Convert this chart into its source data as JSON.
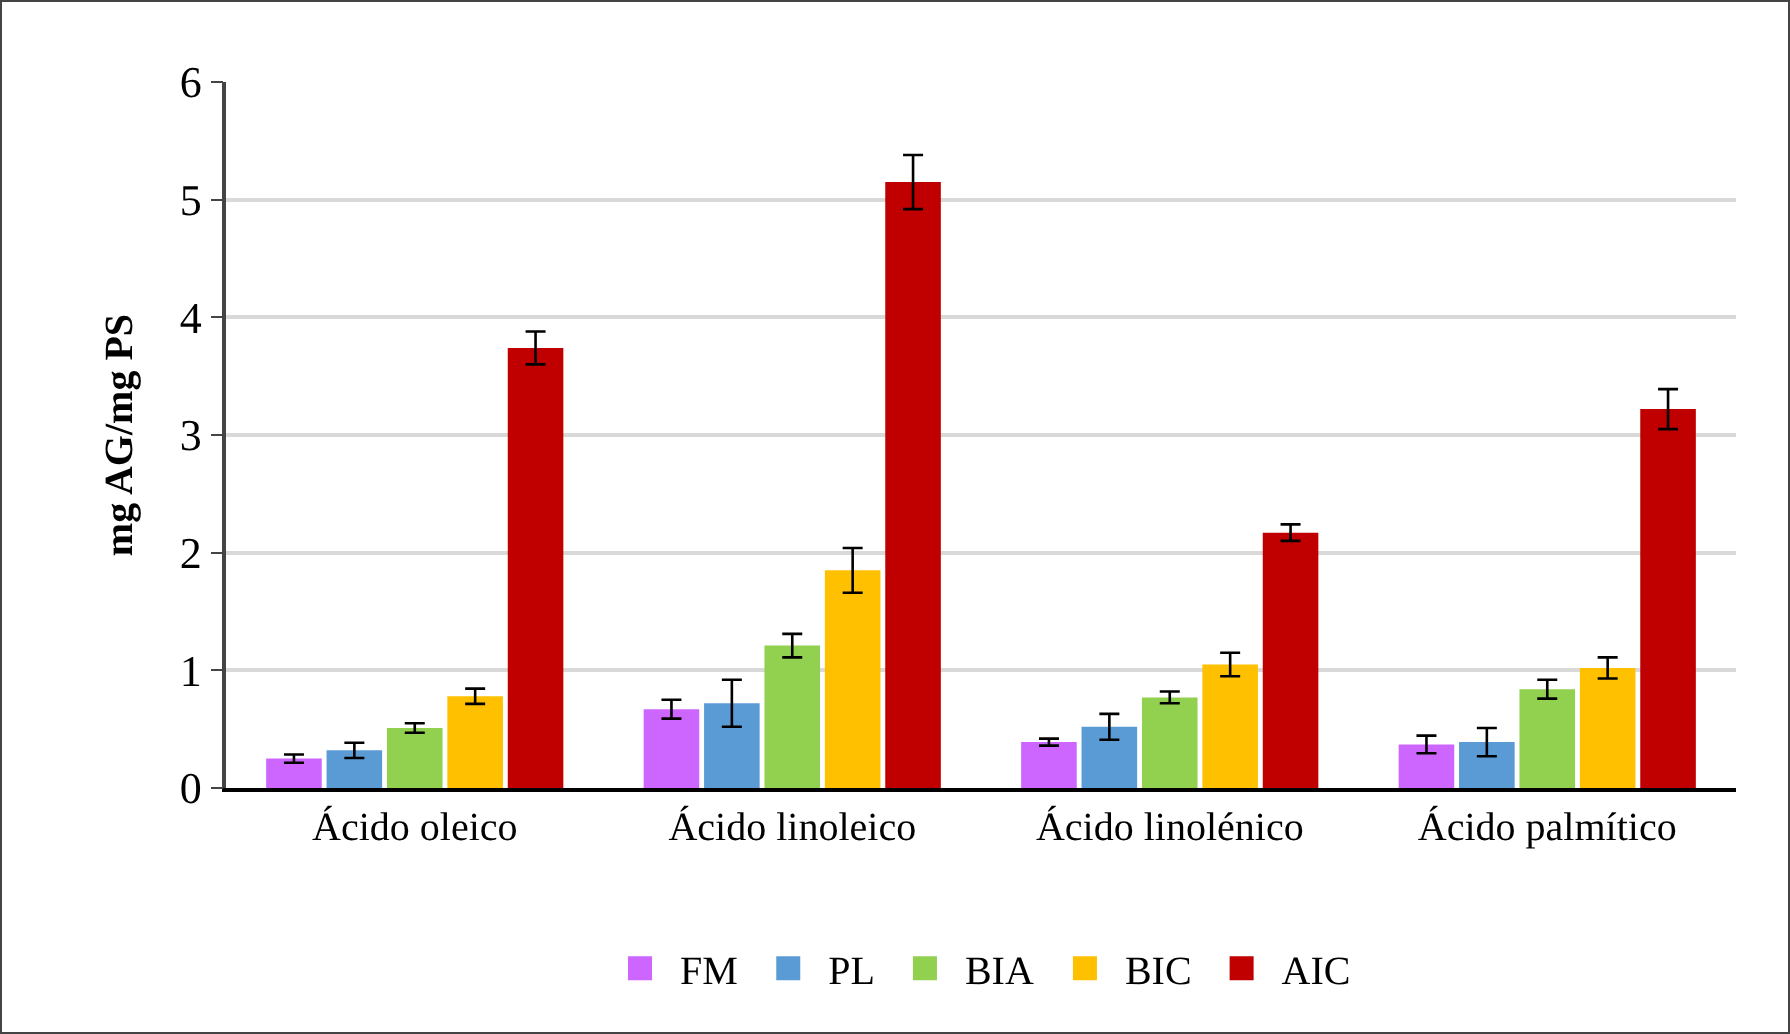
{
  "chart_data": {
    "type": "bar",
    "ylabel": "mg AG/mg PS",
    "categories": [
      "Ácido oleico",
      "Ácido linoleico",
      "Ácido linolénico",
      "Ácido palmítico"
    ],
    "series": [
      {
        "name": "FM",
        "color": "#cc66ff",
        "values": [
          0.25,
          0.67,
          0.39,
          0.37
        ],
        "errors": [
          0.035,
          0.08,
          0.03,
          0.075
        ]
      },
      {
        "name": "PL",
        "color": "#5b9bd5",
        "values": [
          0.32,
          0.72,
          0.52,
          0.39
        ],
        "errors": [
          0.065,
          0.2,
          0.11,
          0.12
        ]
      },
      {
        "name": "BIA",
        "color": "#92d050",
        "values": [
          0.51,
          1.21,
          0.77,
          0.84
        ],
        "errors": [
          0.04,
          0.1,
          0.05,
          0.08
        ]
      },
      {
        "name": "BIC",
        "color": "#ffc000",
        "values": [
          0.78,
          1.85,
          1.05,
          1.02
        ],
        "errors": [
          0.065,
          0.19,
          0.1,
          0.09
        ]
      },
      {
        "name": "AIC",
        "color": "#c00000",
        "values": [
          3.74,
          5.15,
          2.17,
          3.22
        ],
        "errors": [
          0.14,
          0.23,
          0.07,
          0.17
        ]
      }
    ],
    "ylim": [
      0,
      6
    ],
    "yticks": [
      0,
      1,
      2,
      3,
      4,
      5,
      6
    ],
    "grid": "y",
    "legend": "bottom"
  }
}
